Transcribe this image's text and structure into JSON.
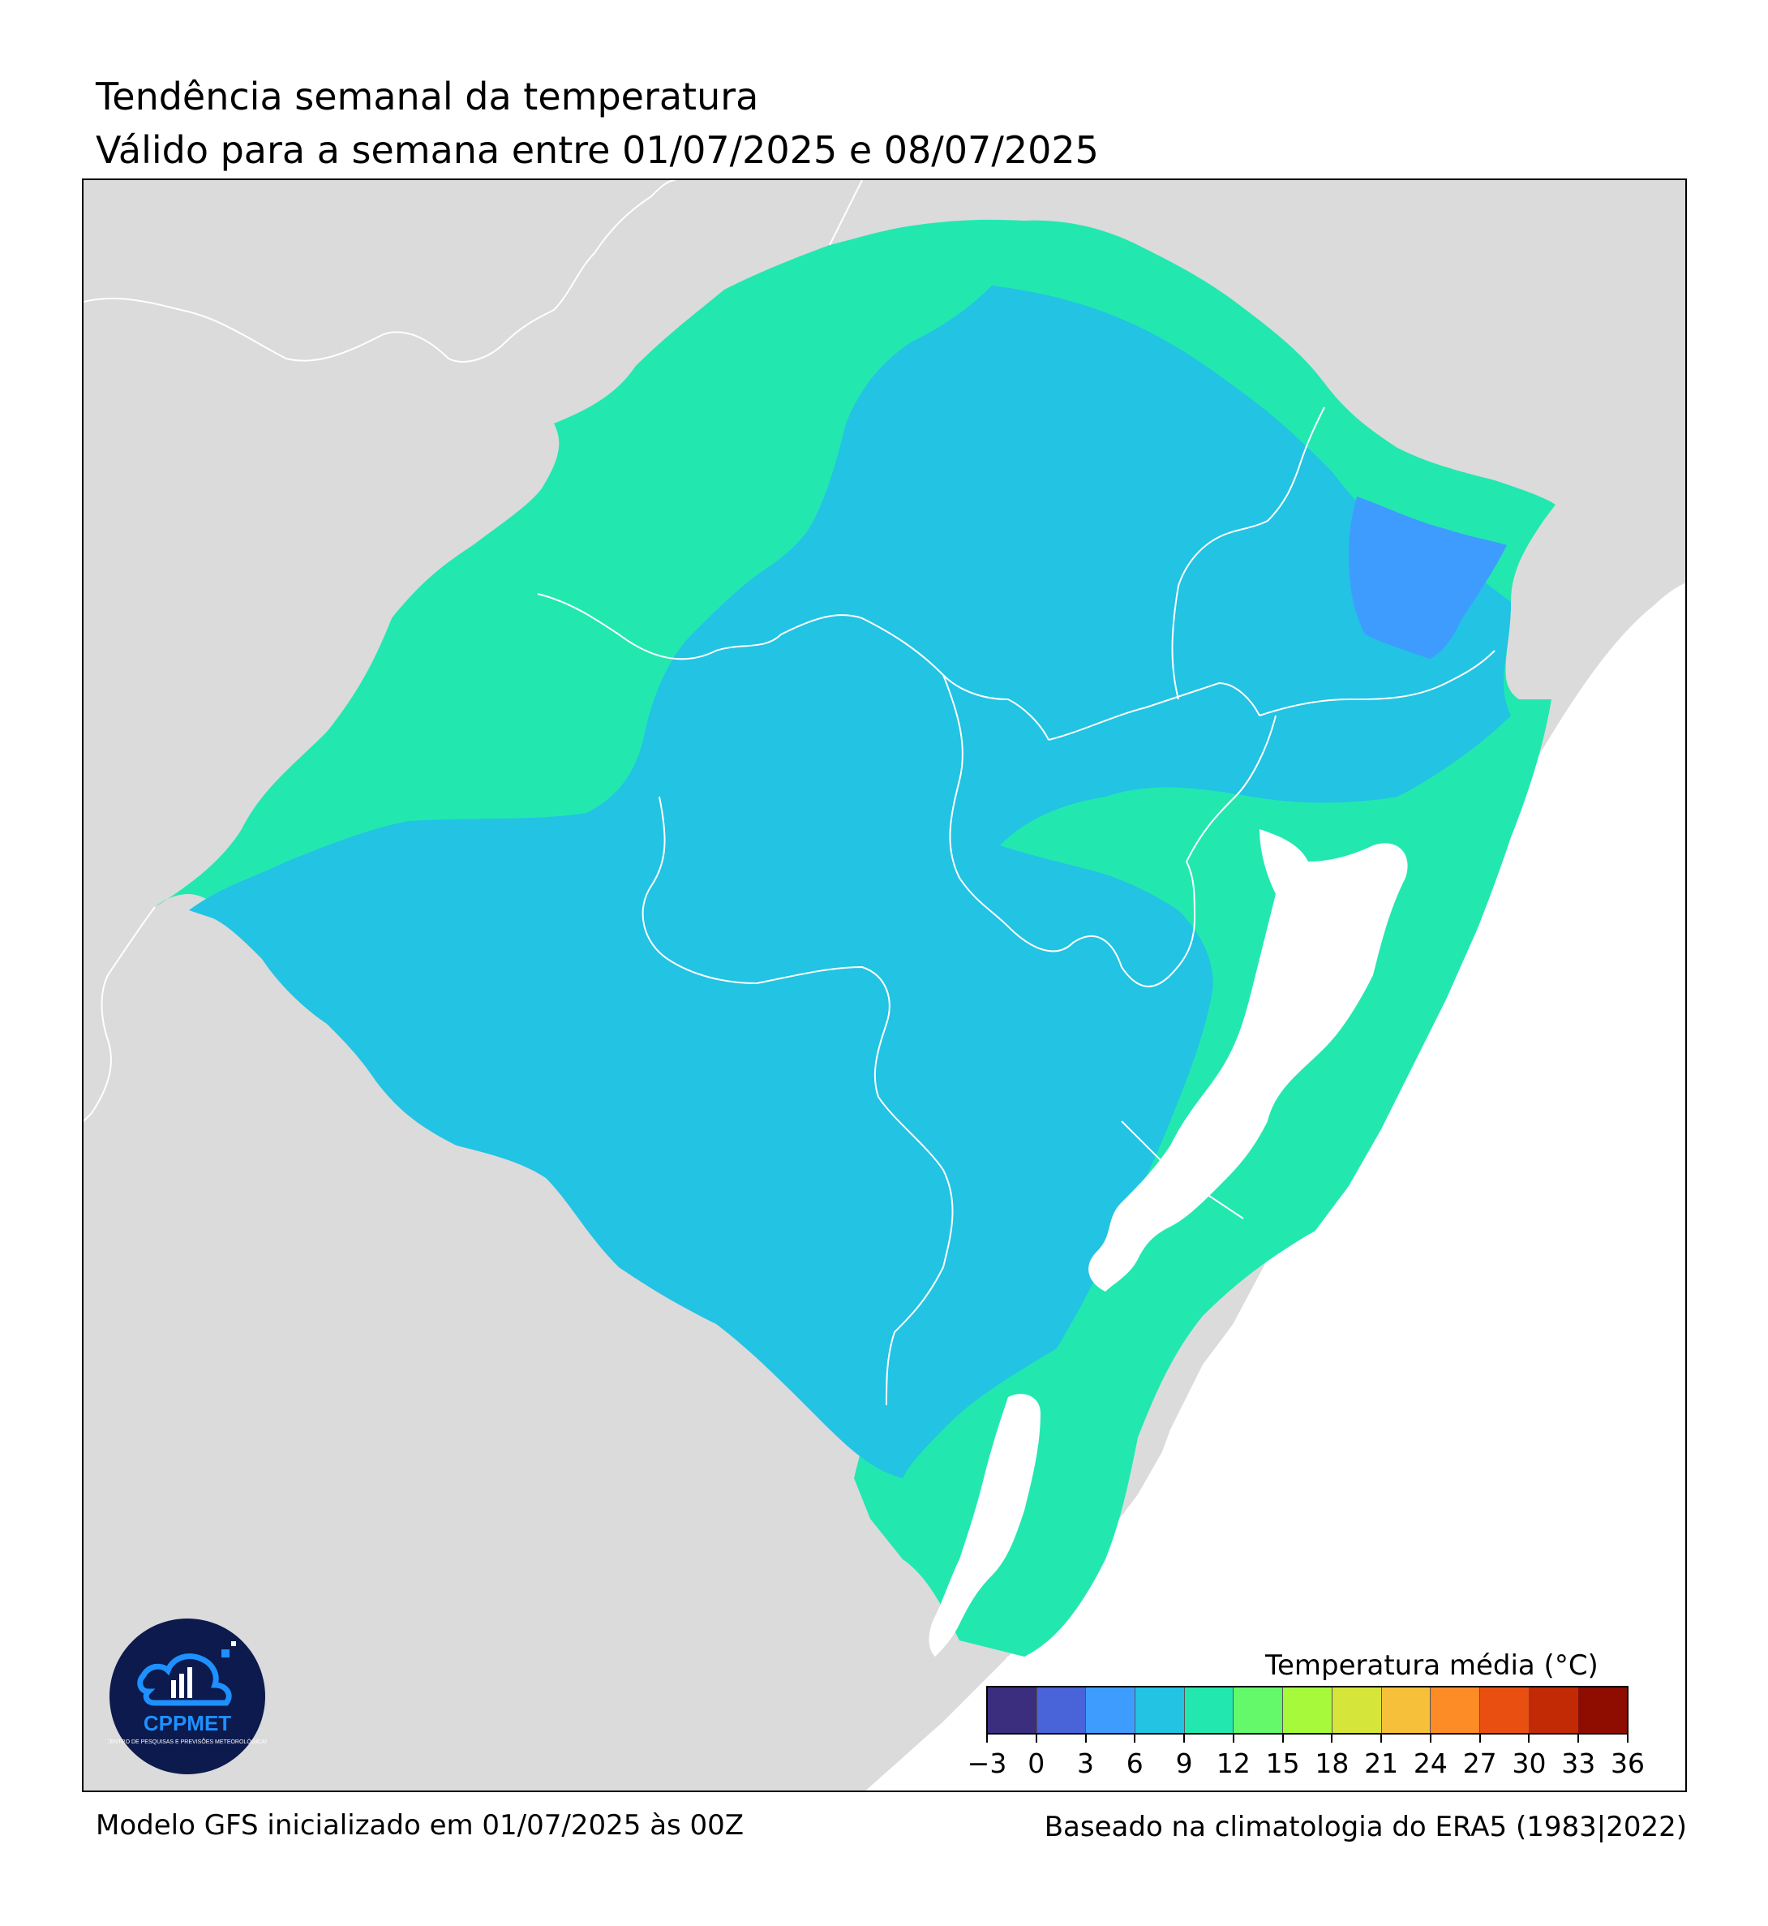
{
  "header": {
    "title": "Tendência semanal da temperatura",
    "subtitle": "Válido para a semana entre 01/07/2025 e 08/07/2025"
  },
  "footer": {
    "model": "Modelo GFS inicializado em 01/07/2025 às 00Z",
    "climatology": "Baseado na climatologia do ERA5 (1983|2022)"
  },
  "legend": {
    "title": "Temperatura média (°C)",
    "ticks": [
      "−3",
      "0",
      "3",
      "6",
      "9",
      "12",
      "15",
      "18",
      "21",
      "24",
      "27",
      "30",
      "33",
      "36"
    ],
    "colors": [
      "#3b2e7e",
      "#4963d8",
      "#3f9cff",
      "#22c3e3",
      "#22e8b0",
      "#63f96b",
      "#a6fa3b",
      "#d6e53a",
      "#f7c03b",
      "#fd8c27",
      "#ea4f12",
      "#c12a05",
      "#8e0c00"
    ]
  },
  "map": {
    "land_color": "#dbdbdb",
    "ocean_color": "#ffffff",
    "boundary_color": "#ffffff"
  },
  "logo": {
    "name": "CPPMET",
    "tagline": "CENTRO DE PESQUISAS E PREVISÕES METEOROLÓGICAS"
  }
}
